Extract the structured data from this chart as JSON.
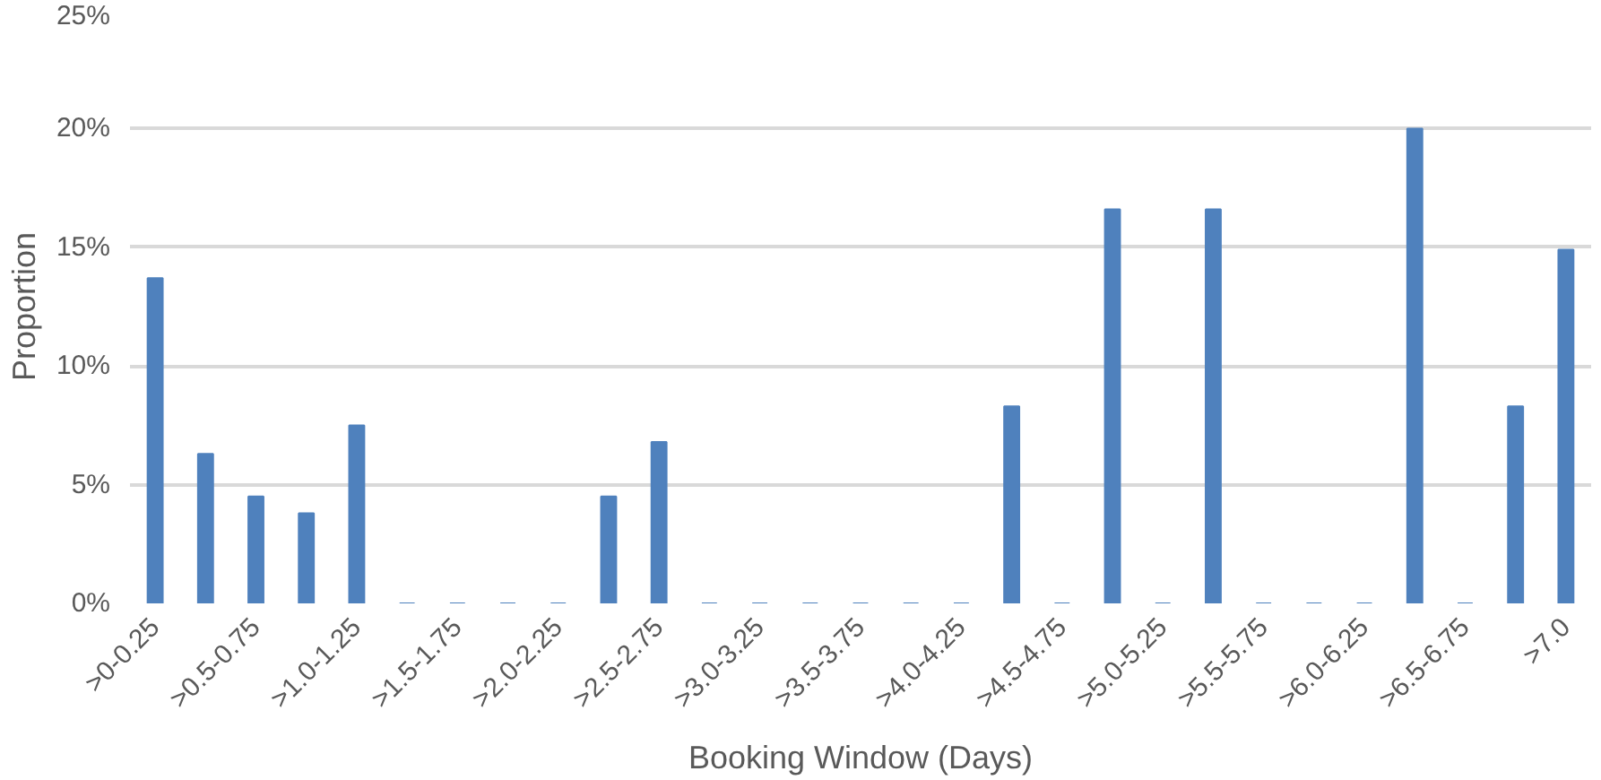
{
  "chart_data": {
    "type": "bar",
    "xlabel": "Booking Window (Days)",
    "ylabel": "Proportion",
    "categories": [
      ">0-0.25",
      null,
      ">0.5-0.75",
      null,
      ">1.0-1.25",
      null,
      ">1.5-1.75",
      null,
      ">2.0-2.25",
      null,
      ">2.5-2.75",
      null,
      ">3.0-3.25",
      null,
      ">3.5-3.75",
      null,
      ">4.0-4.25",
      null,
      ">4.5-4.75",
      null,
      ">5.0-5.25",
      null,
      ">5.5-5.75",
      null,
      ">6.0-6.25",
      null,
      ">6.5-6.75",
      null,
      ">7.0"
    ],
    "values": [
      13.7,
      6.3,
      4.5,
      3.8,
      7.5,
      0,
      0,
      0,
      0,
      4.5,
      6.8,
      0,
      0,
      0,
      0,
      0,
      0,
      8.3,
      0,
      16.6,
      0,
      16.6,
      0,
      0,
      0,
      20.0,
      0,
      8.3,
      14.9
    ],
    "color": "#4f81bd",
    "ylim": [
      0,
      25
    ],
    "yticks": [
      {
        "value": 0,
        "label": "0%"
      },
      {
        "value": 5,
        "label": "5%"
      },
      {
        "value": 10,
        "label": "10%"
      },
      {
        "value": 15,
        "label": "15%"
      },
      {
        "value": 20,
        "label": "20%"
      },
      {
        "value": 25,
        "label": "25%"
      }
    ],
    "grid": "y"
  }
}
